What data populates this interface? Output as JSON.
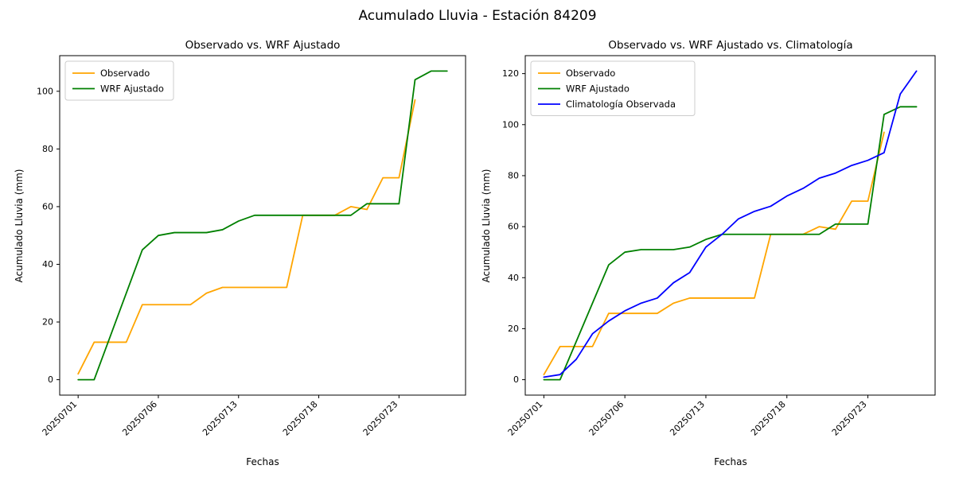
{
  "figure": {
    "title": "Acumulado Lluvia - Estación 84209"
  },
  "chart_data": [
    {
      "type": "line",
      "title": "Observado vs. WRF Ajustado",
      "xlabel": "Fechas",
      "ylabel": "Acumulado Lluvia (mm)",
      "grid": false,
      "legend_position": "upper-left",
      "xlim": [
        -1.15,
        24.15
      ],
      "ylim": [
        -5.35,
        112.35
      ],
      "y_ticks": [
        0,
        20,
        40,
        60,
        80,
        100
      ],
      "x_ticks": [
        {
          "pos": 0,
          "label": "20250701"
        },
        {
          "pos": 5,
          "label": "20250706"
        },
        {
          "pos": 10,
          "label": "20250713"
        },
        {
          "pos": 15,
          "label": "20250718"
        },
        {
          "pos": 20,
          "label": "20250723"
        }
      ],
      "series": [
        {
          "name": "Observado",
          "color": "#FFA500",
          "values": [
            2,
            13,
            13,
            13,
            26,
            26,
            26,
            26,
            30,
            32,
            32,
            32,
            32,
            32,
            57,
            57,
            57,
            60,
            59,
            70,
            70,
            97
          ]
        },
        {
          "name": "WRF Ajustado",
          "color": "#008000",
          "values": [
            0,
            0,
            15,
            30,
            45,
            50,
            51,
            51,
            51,
            52,
            55,
            57,
            57,
            57,
            57,
            57,
            57,
            57,
            61,
            61,
            61,
            104,
            107,
            107
          ]
        }
      ]
    },
    {
      "type": "line",
      "title": "Observado vs. WRF Ajustado vs. Climatología",
      "xlabel": "Fechas",
      "ylabel": "Acumulado Lluvia (mm)",
      "grid": false,
      "legend_position": "upper-left",
      "xlim": [
        -1.15,
        24.15
      ],
      "ylim": [
        -6.05,
        127.05
      ],
      "y_ticks": [
        0,
        20,
        40,
        60,
        80,
        100,
        120
      ],
      "x_ticks": [
        {
          "pos": 0,
          "label": "20250701"
        },
        {
          "pos": 5,
          "label": "20250706"
        },
        {
          "pos": 10,
          "label": "20250713"
        },
        {
          "pos": 15,
          "label": "20250718"
        },
        {
          "pos": 20,
          "label": "20250723"
        }
      ],
      "series": [
        {
          "name": "Observado",
          "color": "#FFA500",
          "values": [
            2,
            13,
            13,
            13,
            26,
            26,
            26,
            26,
            30,
            32,
            32,
            32,
            32,
            32,
            57,
            57,
            57,
            60,
            59,
            70,
            70,
            97
          ]
        },
        {
          "name": "WRF Ajustado",
          "color": "#008000",
          "values": [
            0,
            0,
            15,
            30,
            45,
            50,
            51,
            51,
            51,
            52,
            55,
            57,
            57,
            57,
            57,
            57,
            57,
            57,
            61,
            61,
            61,
            104,
            107,
            107
          ]
        },
        {
          "name": "Climatología Observada",
          "color": "#0000FF",
          "values": [
            1,
            2,
            8,
            18,
            23,
            27,
            30,
            32,
            38,
            42,
            52,
            57,
            63,
            66,
            68,
            72,
            75,
            79,
            81,
            84,
            86,
            89,
            112,
            121
          ]
        }
      ]
    }
  ]
}
